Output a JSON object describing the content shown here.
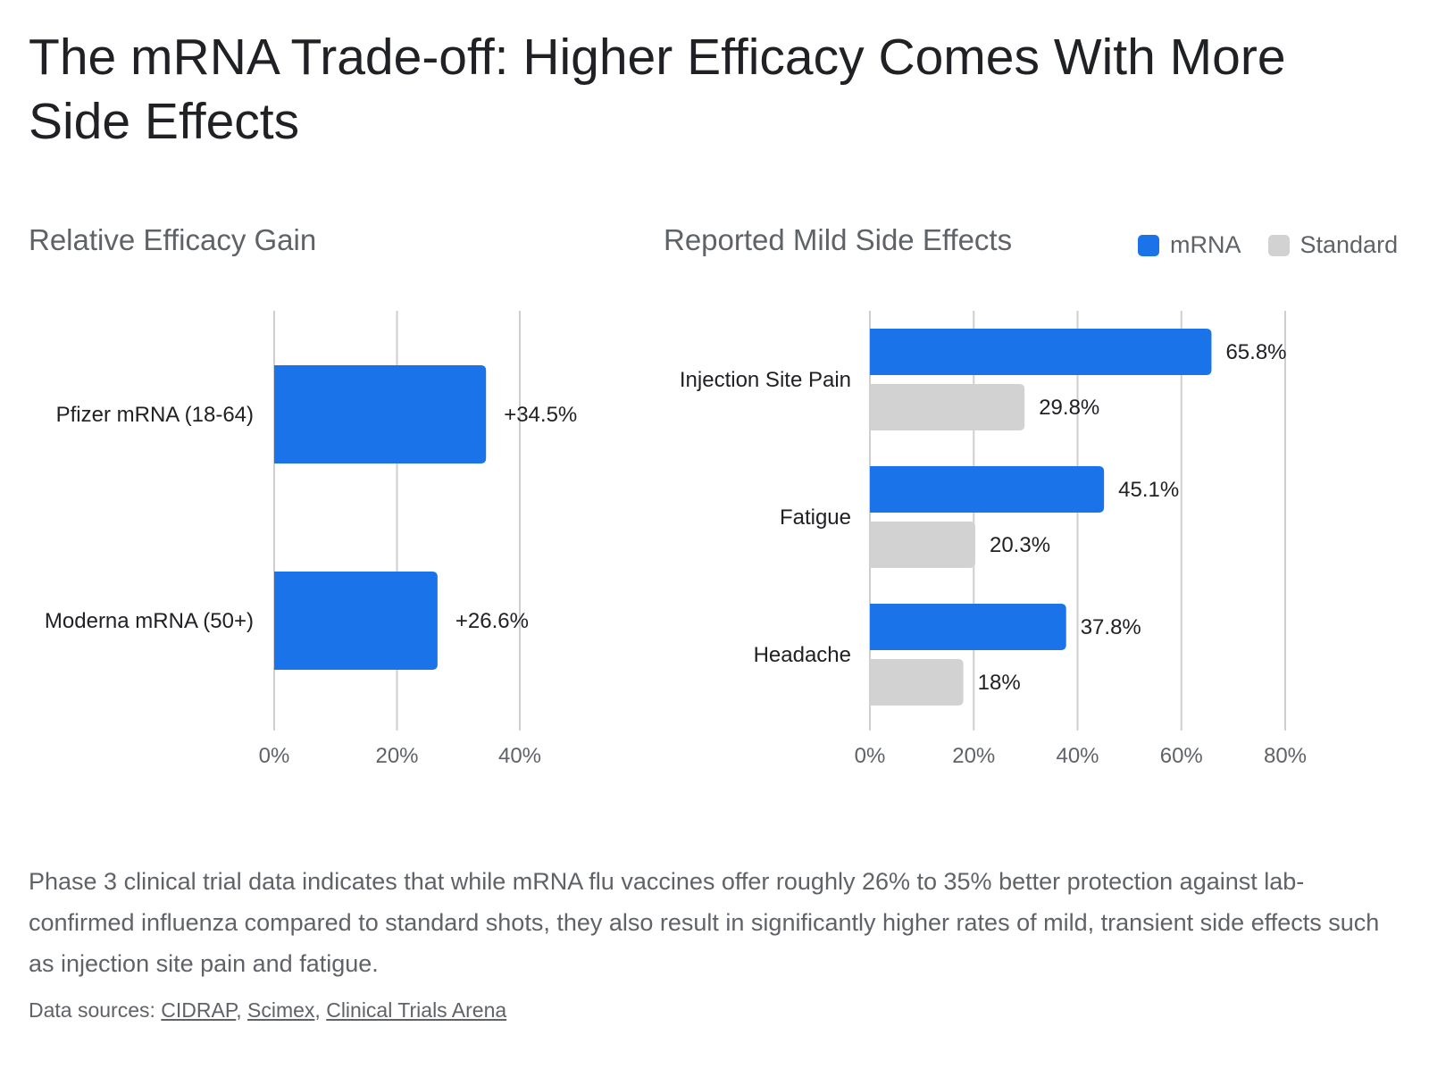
{
  "title": "The mRNA Trade-off: Higher Efficacy Comes With More Side Effects",
  "colors": {
    "mrna": "#1a73e8",
    "standard": "#d2d2d2",
    "grid": "#cfcfcf",
    "text": "#202124",
    "muted": "#5f6368"
  },
  "chart_data": [
    {
      "type": "bar",
      "orientation": "horizontal",
      "title": "Relative Efficacy Gain",
      "categories": [
        "Pfizer mRNA (18-64)",
        "Moderna mRNA (50+)"
      ],
      "values": [
        34.5,
        26.6
      ],
      "value_labels": [
        "+34.5%",
        "+26.6%"
      ],
      "xlim": [
        0,
        40
      ],
      "xticks": [
        "0%",
        "20%",
        "40%"
      ],
      "grid": true
    },
    {
      "type": "bar",
      "orientation": "horizontal",
      "title": "Reported Mild Side Effects",
      "categories": [
        "Injection Site Pain",
        "Fatigue",
        "Headache"
      ],
      "series": [
        {
          "name": "mRNA",
          "values": [
            65.8,
            45.1,
            37.8
          ],
          "value_labels": [
            "65.8%",
            "45.1%",
            "37.8%"
          ]
        },
        {
          "name": "Standard",
          "values": [
            29.8,
            20.3,
            18
          ],
          "value_labels": [
            "29.8%",
            "20.3%",
            "18%"
          ]
        }
      ],
      "xlim": [
        0,
        80
      ],
      "xticks": [
        "0%",
        "20%",
        "40%",
        "60%",
        "80%"
      ],
      "legend": "top-right",
      "grid": true
    }
  ],
  "description": "Phase 3 clinical trial data indicates that while mRNA flu vaccines offer roughly 26% to 35% better protection against lab-confirmed influenza compared to standard shots, they also result in significantly higher rates of mild, transient side effects such as injection site pain and fatigue.",
  "sources": {
    "label": "Data sources: ",
    "links": [
      "CIDRAP",
      "Scimex",
      "Clinical Trials Arena"
    ]
  }
}
